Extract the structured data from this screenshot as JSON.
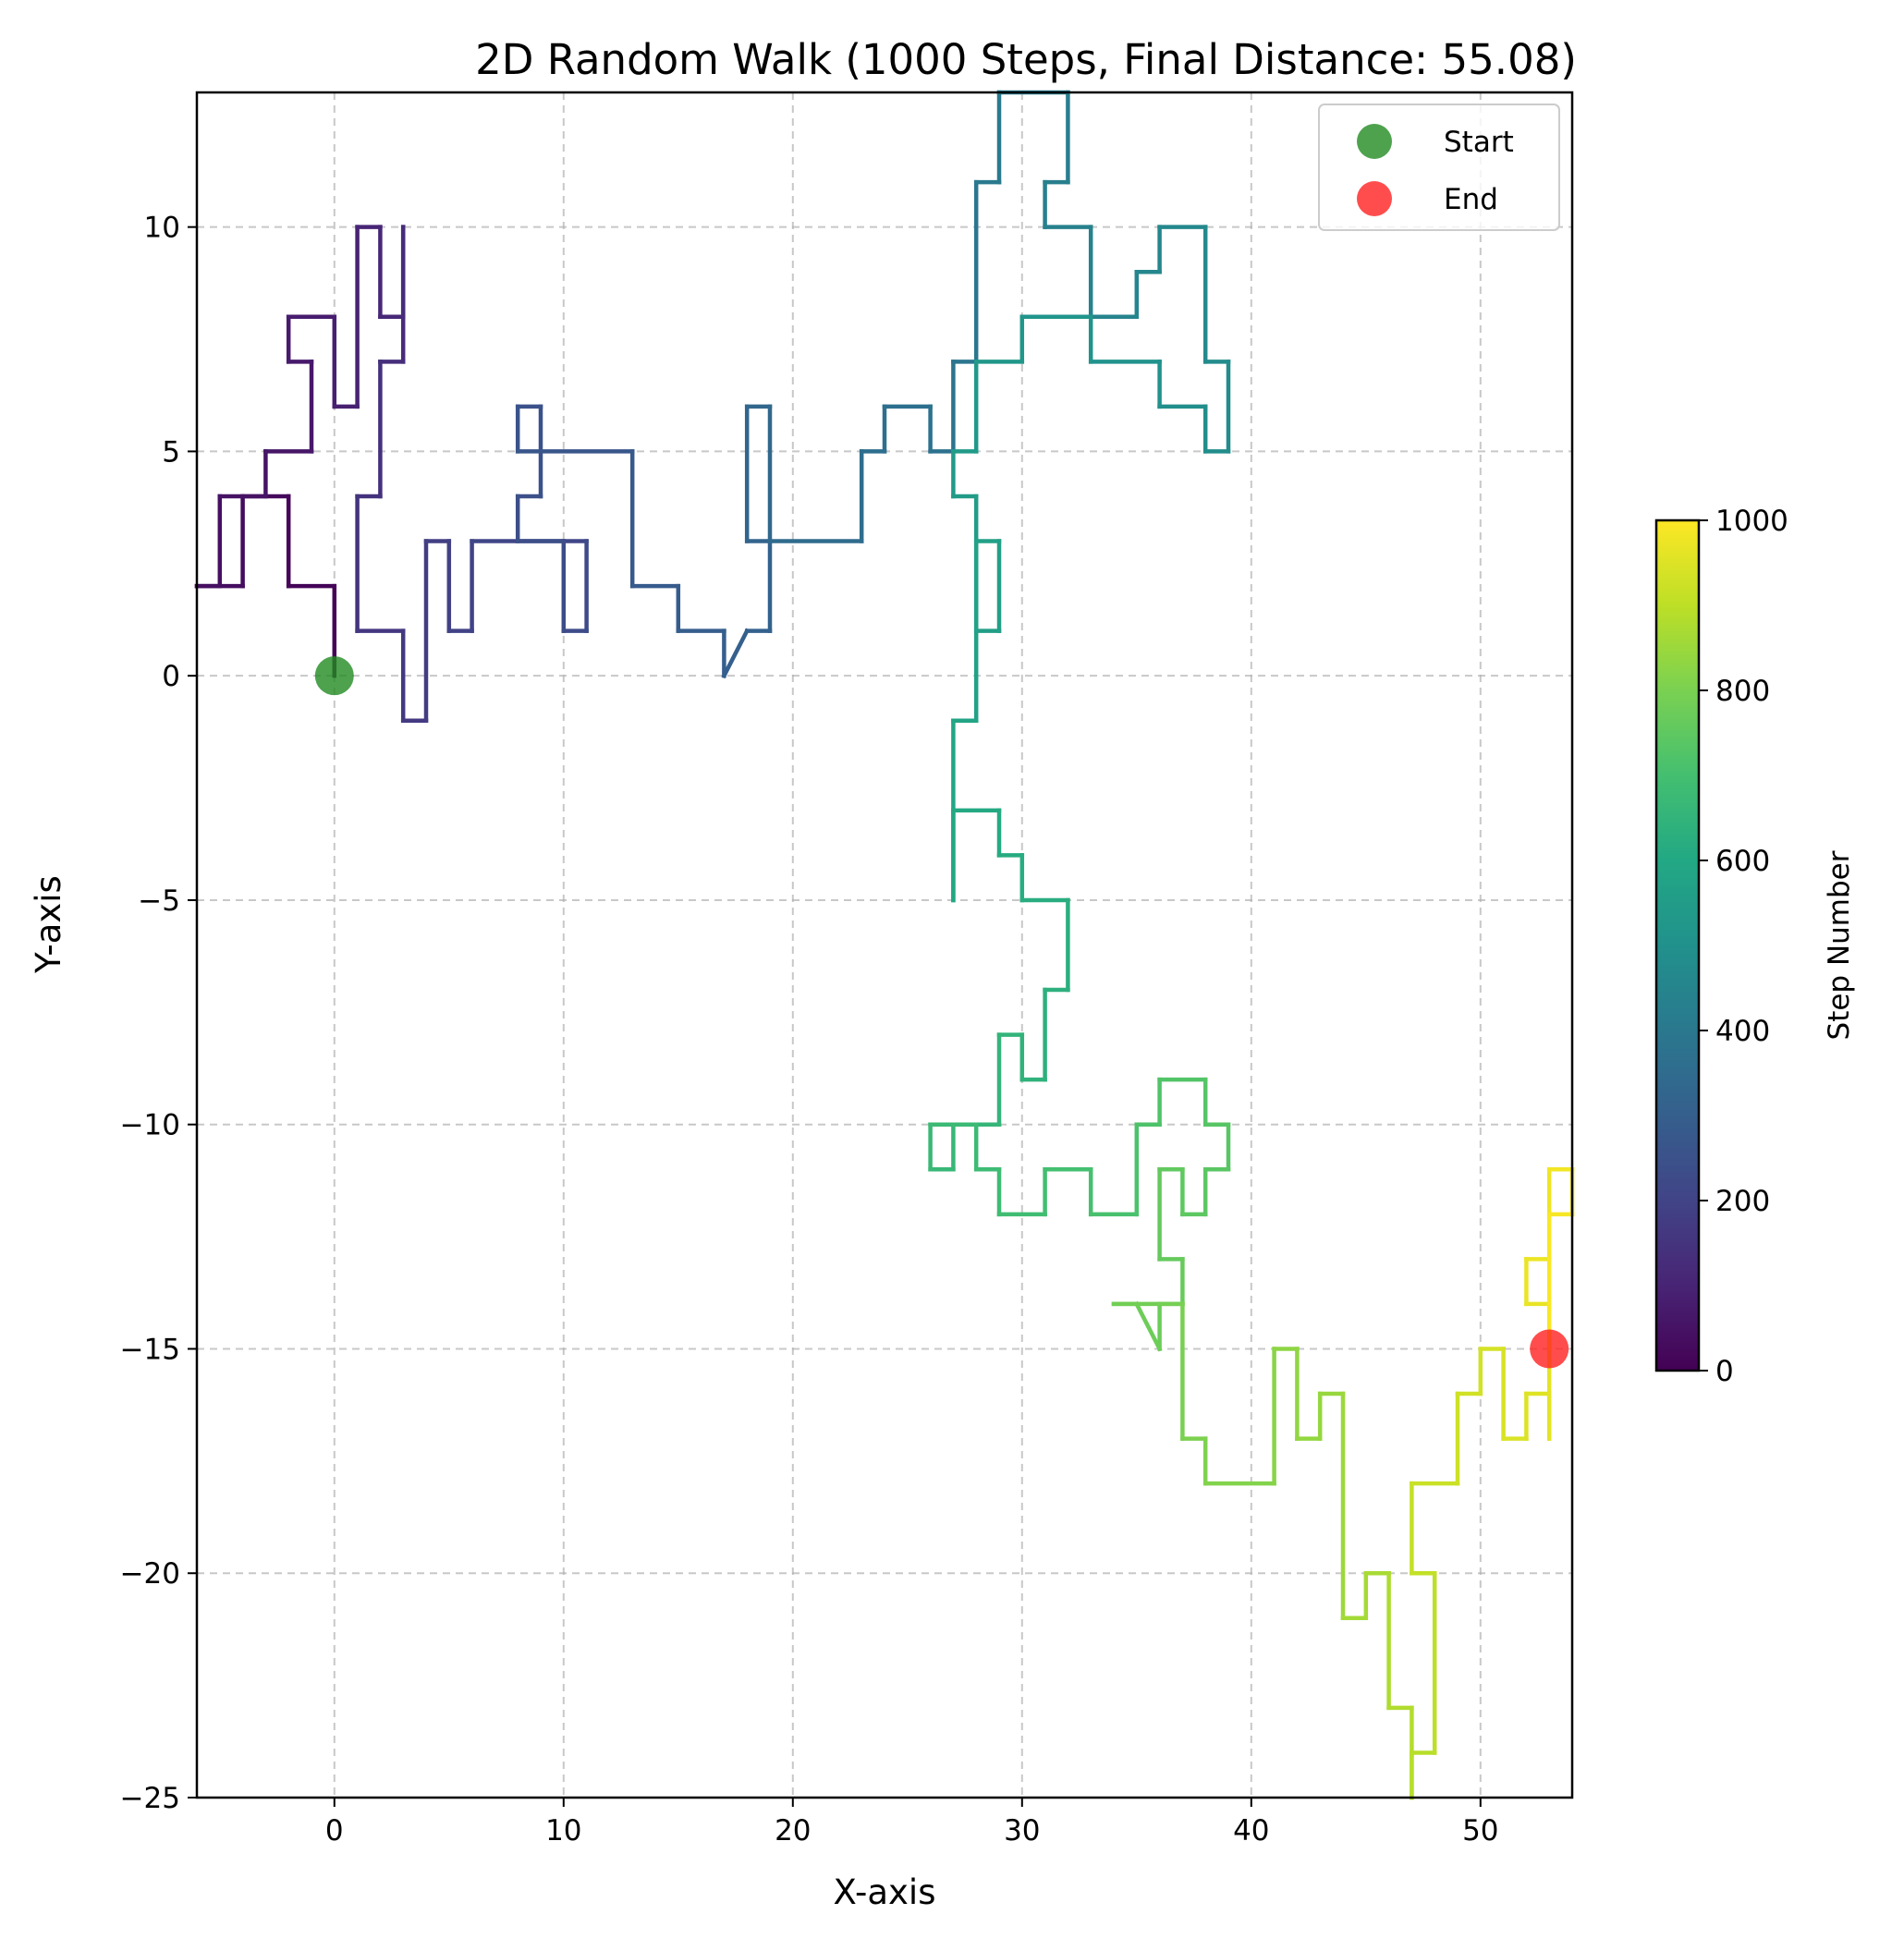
{
  "chart_data": {
    "type": "line",
    "title": "2D Random Walk (1000 Steps, Final Distance: 55.08)",
    "xlabel": "X-axis",
    "ylabel": "Y-axis",
    "xlim": [
      -6,
      54
    ],
    "ylim": [
      -25,
      13
    ],
    "xticks": [
      0,
      10,
      20,
      30,
      40,
      50
    ],
    "yticks": [
      -25,
      -20,
      -15,
      -10,
      -5,
      0,
      5,
      10
    ],
    "grid": true,
    "legend_position": "top-right",
    "colorbar": {
      "label": "Step Number",
      "range": [
        0,
        1000
      ],
      "ticks": [
        0,
        200,
        400,
        600,
        800,
        1000
      ],
      "colormap": "viridis"
    },
    "markers": [
      {
        "name": "Start",
        "x": 0,
        "y": 0,
        "color": "#228B22"
      },
      {
        "name": "End",
        "x": 53,
        "y": -15,
        "color": "#ff2020"
      }
    ],
    "path_vertices": [
      [
        0,
        0
      ],
      [
        0,
        2
      ],
      [
        -2,
        2
      ],
      [
        -2,
        4
      ],
      [
        -4,
        4
      ],
      [
        -4,
        2
      ],
      [
        -6,
        2
      ],
      [
        -5,
        2
      ],
      [
        -5,
        4
      ],
      [
        -3,
        4
      ],
      [
        -3,
        5
      ],
      [
        -1,
        5
      ],
      [
        -1,
        7
      ],
      [
        -2,
        7
      ],
      [
        -2,
        8
      ],
      [
        0,
        8
      ],
      [
        0,
        6
      ],
      [
        1,
        6
      ],
      [
        1,
        10
      ],
      [
        2,
        10
      ],
      [
        2,
        8
      ],
      [
        3,
        8
      ],
      [
        3,
        10
      ],
      [
        3,
        7
      ],
      [
        2,
        7
      ],
      [
        2,
        4
      ],
      [
        1,
        4
      ],
      [
        1,
        1
      ],
      [
        3,
        1
      ],
      [
        3,
        -1
      ],
      [
        4,
        -1
      ],
      [
        4,
        3
      ],
      [
        5,
        3
      ],
      [
        5,
        1
      ],
      [
        6,
        1
      ],
      [
        6,
        3
      ],
      [
        11,
        3
      ],
      [
        11,
        1
      ],
      [
        10,
        1
      ],
      [
        10,
        3
      ],
      [
        8,
        3
      ],
      [
        8,
        4
      ],
      [
        9,
        4
      ],
      [
        9,
        6
      ],
      [
        8,
        6
      ],
      [
        8,
        5
      ],
      [
        13,
        5
      ],
      [
        13,
        2
      ],
      [
        15,
        2
      ],
      [
        15,
        1
      ],
      [
        17,
        1
      ],
      [
        17,
        0
      ],
      [
        18,
        1
      ],
      [
        19,
        1
      ],
      [
        19,
        3
      ],
      [
        18,
        3
      ],
      [
        18,
        6
      ],
      [
        19,
        6
      ],
      [
        19,
        3
      ],
      [
        23,
        3
      ],
      [
        23,
        5
      ],
      [
        24,
        5
      ],
      [
        24,
        6
      ],
      [
        26,
        6
      ],
      [
        26,
        5
      ],
      [
        27,
        5
      ],
      [
        27,
        7
      ],
      [
        28,
        7
      ],
      [
        28,
        11
      ],
      [
        29,
        11
      ],
      [
        29,
        13
      ],
      [
        32,
        13
      ],
      [
        32,
        11
      ],
      [
        31,
        11
      ],
      [
        31,
        10
      ],
      [
        33,
        10
      ],
      [
        33,
        8
      ],
      [
        35,
        8
      ],
      [
        35,
        9
      ],
      [
        36,
        9
      ],
      [
        36,
        10
      ],
      [
        38,
        10
      ],
      [
        38,
        7
      ],
      [
        39,
        7
      ],
      [
        39,
        5
      ],
      [
        38,
        5
      ],
      [
        38,
        6
      ],
      [
        36,
        6
      ],
      [
        36,
        7
      ],
      [
        33,
        7
      ],
      [
        33,
        8
      ],
      [
        30,
        8
      ],
      [
        30,
        7
      ],
      [
        28,
        7
      ],
      [
        28,
        5
      ],
      [
        27,
        5
      ],
      [
        27,
        4
      ],
      [
        28,
        4
      ],
      [
        28,
        1
      ],
      [
        29,
        1
      ],
      [
        29,
        3
      ],
      [
        28,
        3
      ],
      [
        28,
        -1
      ],
      [
        27,
        -1
      ],
      [
        27,
        -5
      ],
      [
        27,
        -3
      ],
      [
        29,
        -3
      ],
      [
        29,
        -4
      ],
      [
        30,
        -4
      ],
      [
        30,
        -5
      ],
      [
        32,
        -5
      ],
      [
        32,
        -7
      ],
      [
        31,
        -7
      ],
      [
        31,
        -9
      ],
      [
        30,
        -9
      ],
      [
        30,
        -8
      ],
      [
        29,
        -8
      ],
      [
        29,
        -10
      ],
      [
        27,
        -10
      ],
      [
        27,
        -11
      ],
      [
        26,
        -11
      ],
      [
        26,
        -10
      ],
      [
        28,
        -10
      ],
      [
        28,
        -11
      ],
      [
        29,
        -11
      ],
      [
        29,
        -12
      ],
      [
        31,
        -12
      ],
      [
        31,
        -11
      ],
      [
        33,
        -11
      ],
      [
        33,
        -12
      ],
      [
        35,
        -12
      ],
      [
        35,
        -10
      ],
      [
        36,
        -10
      ],
      [
        36,
        -9
      ],
      [
        38,
        -9
      ],
      [
        38,
        -10
      ],
      [
        39,
        -10
      ],
      [
        39,
        -11
      ],
      [
        38,
        -11
      ],
      [
        38,
        -12
      ],
      [
        37,
        -12
      ],
      [
        37,
        -11
      ],
      [
        36,
        -11
      ],
      [
        36,
        -13
      ],
      [
        37,
        -13
      ],
      [
        37,
        -14
      ],
      [
        36,
        -14
      ],
      [
        36,
        -15
      ],
      [
        35,
        -14
      ],
      [
        34,
        -14
      ],
      [
        36,
        -14
      ],
      [
        37,
        -14
      ],
      [
        37,
        -17
      ],
      [
        38,
        -17
      ],
      [
        38,
        -18
      ],
      [
        41,
        -18
      ],
      [
        41,
        -15
      ],
      [
        42,
        -15
      ],
      [
        42,
        -17
      ],
      [
        43,
        -17
      ],
      [
        43,
        -16
      ],
      [
        44,
        -16
      ],
      [
        44,
        -21
      ],
      [
        45,
        -21
      ],
      [
        45,
        -20
      ],
      [
        46,
        -20
      ],
      [
        46,
        -23
      ],
      [
        47,
        -23
      ],
      [
        47,
        -25
      ],
      [
        47,
        -24
      ],
      [
        48,
        -24
      ],
      [
        48,
        -20
      ],
      [
        47,
        -20
      ],
      [
        47,
        -18
      ],
      [
        49,
        -18
      ],
      [
        49,
        -16
      ],
      [
        50,
        -16
      ],
      [
        50,
        -15
      ],
      [
        51,
        -15
      ],
      [
        51,
        -17
      ],
      [
        52,
        -17
      ],
      [
        52,
        -16
      ],
      [
        53,
        -16
      ],
      [
        53,
        -17
      ],
      [
        53,
        -14
      ],
      [
        52,
        -14
      ],
      [
        52,
        -13
      ],
      [
        53,
        -13
      ],
      [
        53,
        -11
      ],
      [
        54,
        -11
      ],
      [
        54,
        -12
      ],
      [
        53,
        -12
      ],
      [
        53,
        -15
      ]
    ]
  }
}
